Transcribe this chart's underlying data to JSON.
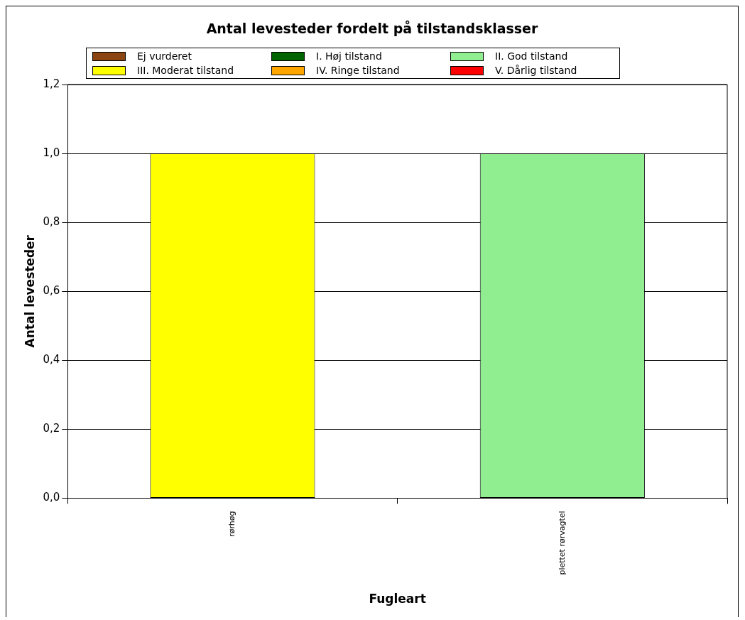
{
  "chart_data": {
    "type": "bar",
    "title": "Antal levesteder fordelt på tilstandsklasser",
    "xlabel": "Fugleart",
    "ylabel": "Antal levesteder",
    "categories": [
      "rørhøg",
      "plettet rørvagtel"
    ],
    "stacked": true,
    "series": [
      {
        "name": "Ej vurderet",
        "color": "#8b4513",
        "values": [
          0,
          0
        ]
      },
      {
        "name": "I. Høj tilstand",
        "color": "#006400",
        "values": [
          0,
          0
        ]
      },
      {
        "name": "II. God tilstand",
        "color": "#90ee90",
        "values": [
          0,
          1
        ]
      },
      {
        "name": "III. Moderat tilstand",
        "color": "#ffff00",
        "values": [
          1,
          0
        ]
      },
      {
        "name": "IV. Ringe tilstand",
        "color": "#ffa500",
        "values": [
          0,
          0
        ]
      },
      {
        "name": "V. Dårlig tilstand",
        "color": "#ff0000",
        "values": [
          0,
          0
        ]
      }
    ],
    "ylim": [
      0,
      1.2
    ],
    "yticks": [
      {
        "value": 0,
        "label": "0,0"
      },
      {
        "value": 0.2,
        "label": "0,2"
      },
      {
        "value": 0.4,
        "label": "0,4"
      },
      {
        "value": 0.6,
        "label": "0,6"
      },
      {
        "value": 0.8,
        "label": "0,8"
      },
      {
        "value": 1,
        "label": "1,0"
      },
      {
        "value": 1.2,
        "label": "1,2"
      }
    ],
    "grid": "y",
    "legend": "top"
  }
}
